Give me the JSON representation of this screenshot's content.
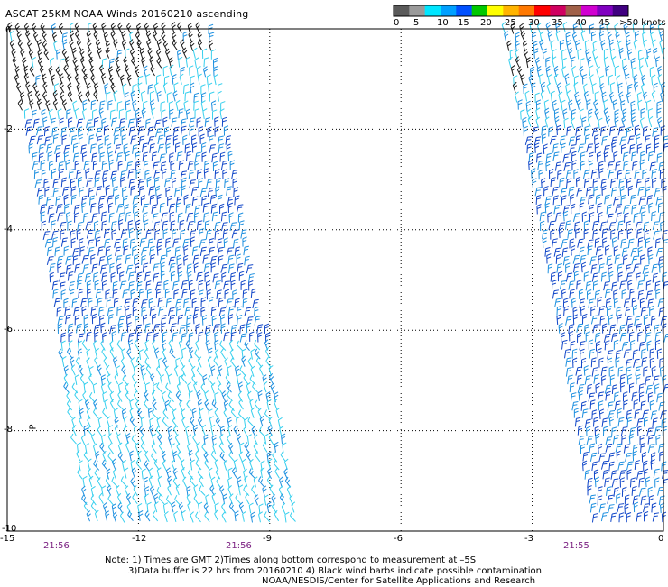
{
  "title": "ASCAT 25KM NOAA Winds 20160210 ascending",
  "legend": {
    "labels": [
      "0",
      "5",
      "10",
      "15",
      "20",
      "25",
      "30",
      "35",
      "40",
      "45",
      ">50 knots"
    ],
    "colors": [
      "#5a5a5a",
      "#9a9a9a",
      "#00e6ff",
      "#00a0ff",
      "#0050ff",
      "#00c800",
      "#ffff00",
      "#ffb400",
      "#ff7800",
      "#ff0000",
      "#d00060",
      "#a06048",
      "#d000d0",
      "#8000c0",
      "#400080"
    ]
  },
  "y_axis_labels": [
    "0",
    "-2",
    "-4",
    "-6",
    "-8",
    "-10"
  ],
  "x_axis_labels": [
    "-15",
    "-12",
    "-9",
    "-6",
    "-3",
    "0"
  ],
  "pass_times": [
    "21:56",
    "21:56",
    "21:55"
  ],
  "side_label": "P",
  "notes": {
    "line1": "Note: 1) Times are GMT 2)Times along bottom correspond to measurement at –5S",
    "line2": "3)Data buffer is 22 hrs from 20160210 4) Black wind barbs indicate possible contamination",
    "line3": "NOAA/NESDIS/Center for Satellite Applications and Research"
  },
  "swaths": [
    {
      "name": "left-swath",
      "lon_start": -15,
      "lon_end": -8.5
    },
    {
      "name": "right-swath",
      "lon_start": -3.6,
      "lon_end": 0
    }
  ],
  "wind_colors": {
    "contaminated": "#1a1a1a",
    "light": "#38d0ee",
    "medium": "#1e90e0",
    "strong": "#1046c8"
  }
}
